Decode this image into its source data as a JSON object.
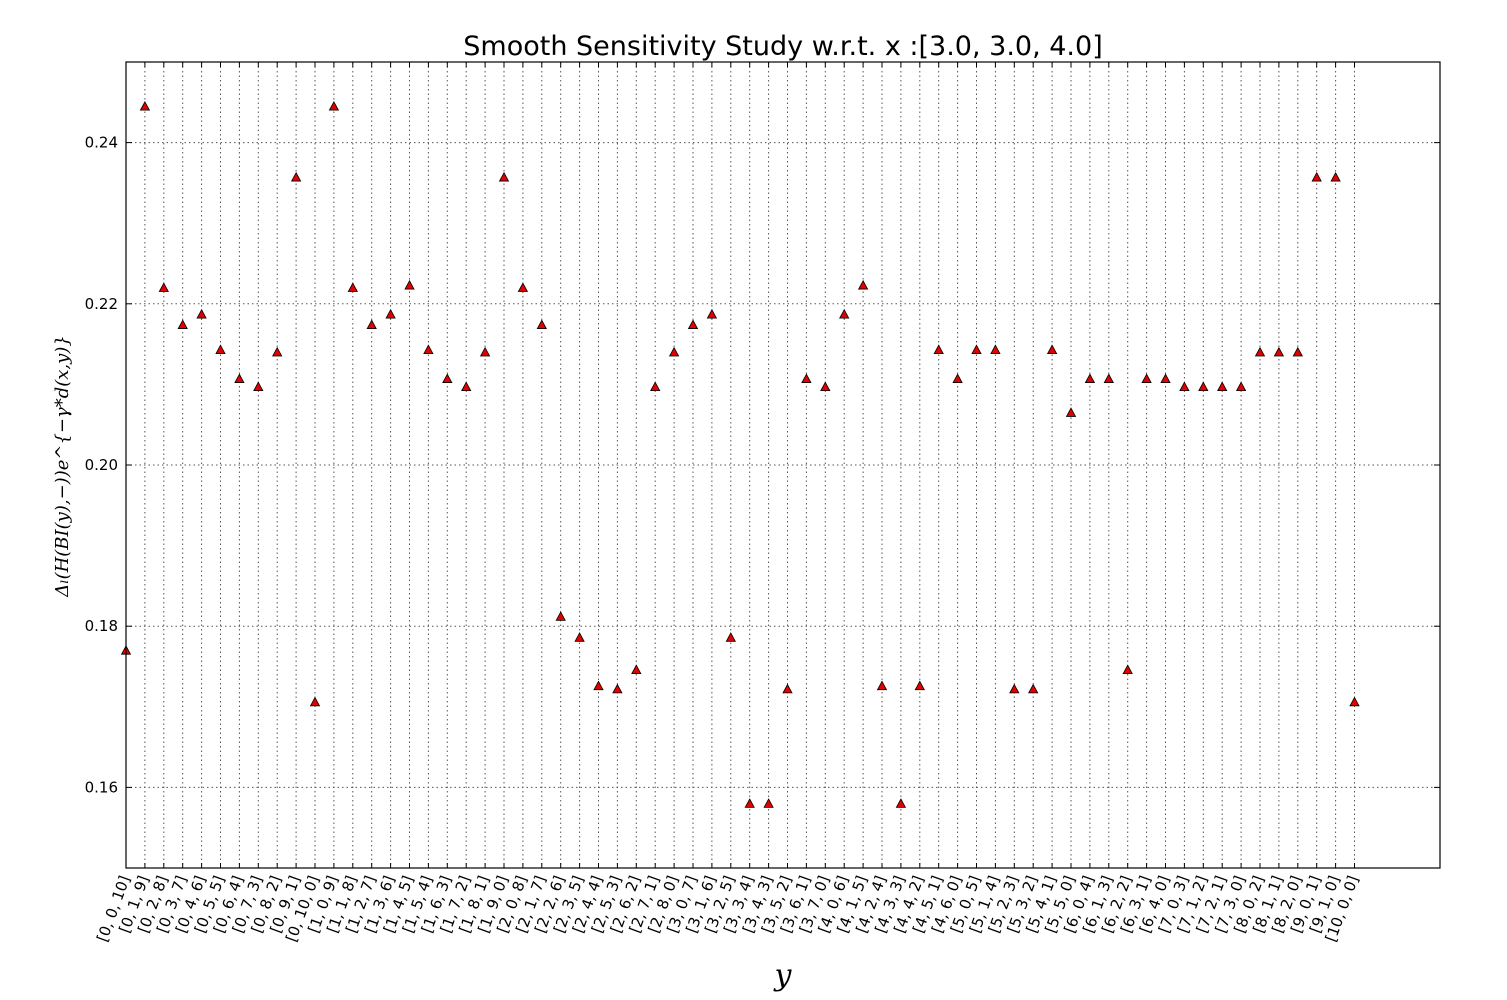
{
  "chart_data": {
    "type": "scatter",
    "title": "Smooth Sensitivity Study w.r.t. x :[3.0, 3.0, 4.0]",
    "xlabel": "y",
    "ylabel": "Δₗ(H(BI(y),−))e^{−γ*d(x,y)}",
    "ylim": [
      0.15,
      0.25
    ],
    "yticks": [
      0.16,
      0.18,
      0.2,
      0.22,
      0.24
    ],
    "ytick_labels": [
      "0.16",
      "0.18",
      "0.20",
      "0.22",
      "0.24"
    ],
    "grid": true,
    "marker": "triangle",
    "marker_color": "#e00000",
    "categories": [
      "[0, 0, 10]",
      "[0, 1, 9]",
      "[0, 2, 8]",
      "[0, 3, 7]",
      "[0, 4, 6]",
      "[0, 5, 5]",
      "[0, 6, 4]",
      "[0, 7, 3]",
      "[0, 8, 2]",
      "[0, 9, 1]",
      "[0, 10, 0]",
      "[1, 0, 9]",
      "[1, 1, 8]",
      "[1, 2, 7]",
      "[1, 3, 6]",
      "[1, 4, 5]",
      "[1, 5, 4]",
      "[1, 6, 3]",
      "[1, 7, 2]",
      "[1, 8, 1]",
      "[1, 9, 0]",
      "[2, 0, 8]",
      "[2, 1, 7]",
      "[2, 2, 6]",
      "[2, 3, 5]",
      "[2, 4, 4]",
      "[2, 5, 3]",
      "[2, 6, 2]",
      "[2, 7, 1]",
      "[2, 8, 0]",
      "[3, 0, 7]",
      "[3, 1, 6]",
      "[3, 2, 5]",
      "[3, 3, 4]",
      "[3, 4, 3]",
      "[3, 5, 2]",
      "[3, 6, 1]",
      "[3, 7, 0]",
      "[4, 0, 6]",
      "[4, 1, 5]",
      "[4, 2, 4]",
      "[4, 3, 3]",
      "[4, 4, 2]",
      "[4, 5, 1]",
      "[4, 6, 0]",
      "[5, 0, 5]",
      "[5, 1, 4]",
      "[5, 2, 3]",
      "[5, 3, 2]",
      "[5, 4, 1]",
      "[5, 5, 0]",
      "[6, 0, 4]",
      "[6, 1, 3]",
      "[6, 2, 2]",
      "[6, 3, 1]",
      "[6, 4, 0]",
      "[7, 0, 3]",
      "[7, 1, 2]",
      "[7, 2, 1]",
      "[7, 3, 0]",
      "[8, 0, 2]",
      "[8, 1, 1]",
      "[8, 2, 0]",
      "[9, 0, 1]",
      "[9, 1, 0]",
      "[10, 0, 0]"
    ],
    "values": [
      0.177,
      0.2445,
      0.222,
      0.2174,
      0.2187,
      0.2143,
      0.2107,
      0.2097,
      0.214,
      0.2357,
      0.1706,
      0.2445,
      0.222,
      0.2174,
      0.2187,
      0.2223,
      0.2143,
      0.2107,
      0.2097,
      0.214,
      0.2357,
      0.222,
      0.2174,
      0.1812,
      0.1786,
      0.1726,
      0.1722,
      0.1746,
      0.2097,
      0.214,
      0.2174,
      0.2187,
      0.1786,
      0.158,
      0.158,
      0.1722,
      0.2107,
      0.2097,
      0.2187,
      0.2223,
      0.1726,
      0.158,
      0.1726,
      0.2143,
      0.2107,
      0.2143,
      0.2143,
      0.1722,
      0.1722,
      0.2143,
      0.2065,
      0.2107,
      0.2107,
      0.1746,
      0.2107,
      0.2107,
      0.2097,
      0.2097,
      0.2097,
      0.2097,
      0.214,
      0.214,
      0.214,
      0.2357,
      0.2357,
      0.1706
    ]
  }
}
